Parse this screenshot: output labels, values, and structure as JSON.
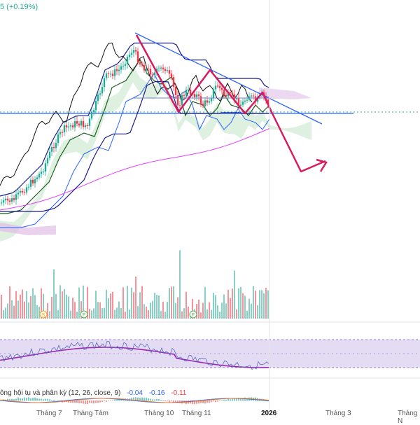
{
  "header": {
    "change_text": "5 (+0.19%)",
    "change_color": "#22ab94"
  },
  "macd_label": {
    "title": "ông hội tụ và phân kỳ (12, 26, close, 9)",
    "v1": "-0.04",
    "v2": "-0.16",
    "v3": "-0.11"
  },
  "markers": [
    "S",
    "F",
    "F"
  ],
  "x_axis": {
    "labels": [
      "Tháng 7",
      "Tháng Tám",
      "Tháng 10",
      "Tháng 11",
      "2026",
      "Tháng 3",
      "Tháng N"
    ]
  },
  "colors": {
    "up": "#22ab94",
    "down": "#f23645",
    "trend_blue": "#2962ff",
    "navy": "#1a1a8c",
    "forecast": "#d81b60",
    "cloud_green": "#c8e6c9",
    "cloud_purple": "#e1bee7",
    "rsi_band": "#d1c4e9"
  },
  "chart_data": {
    "type": "candlestick",
    "panes": [
      "price",
      "volume",
      "rsi",
      "macd"
    ],
    "categories": [
      "Tháng 7",
      "Tháng Tám",
      "Tháng 10",
      "Tháng 11",
      "2026",
      "Tháng 3",
      "Tháng N"
    ],
    "price_series_description": "Uptrend from July to a peak in early September, then sideways descending-triangle consolidation into late December",
    "forecast": "downward arrow projected after 2026",
    "series": [
      {
        "type": "volume",
        "pane": "volume"
      },
      {
        "type": "rsi",
        "pane": "rsi"
      },
      {
        "type": "macd",
        "pane": "macd",
        "values_shown": [
          -0.04,
          -0.16,
          -0.11
        ]
      }
    ]
  }
}
